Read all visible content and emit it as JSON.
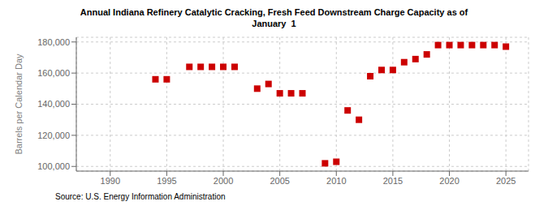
{
  "chart_data": {
    "type": "scatter",
    "title": "Annual Indiana Refinery Catalytic Cracking, Fresh Feed Downstream Charge Capacity as of\nJanuary  1",
    "ylabel": "Barrels per Calendar Day",
    "annotations": [
      "Source: U.S. Energy Information Administration"
    ],
    "x": [
      1994,
      1995,
      1997,
      1998,
      1999,
      2000,
      2001,
      2003,
      2004,
      2005,
      2006,
      2007,
      2009,
      2010,
      2011,
      2012,
      2013,
      2014,
      2015,
      2016,
      2017,
      2018,
      2019,
      2020,
      2021,
      2022,
      2023,
      2024,
      2025
    ],
    "values": [
      156000,
      156000,
      164000,
      164000,
      164000,
      164000,
      164000,
      150000,
      153000,
      147000,
      147000,
      147000,
      102000,
      103000,
      136000,
      130000,
      158000,
      162000,
      162000,
      167000,
      169000,
      172000,
      178000,
      178000,
      178000,
      178000,
      178000,
      178000,
      177000
    ],
    "xlim": [
      1987,
      2027
    ],
    "ylim": [
      97000,
      183000
    ],
    "xticks": [
      1990,
      1995,
      2000,
      2005,
      2010,
      2015,
      2020,
      2025
    ],
    "yticks": [
      {
        "value": 100000,
        "label": "100,000"
      },
      {
        "value": 120000,
        "label": "120,000"
      },
      {
        "value": 140000,
        "label": "140,000"
      },
      {
        "value": 160000,
        "label": "160,000"
      },
      {
        "value": 180000,
        "label": "180,000"
      }
    ],
    "grid": true,
    "color": "#cc0000",
    "marker": "square"
  }
}
